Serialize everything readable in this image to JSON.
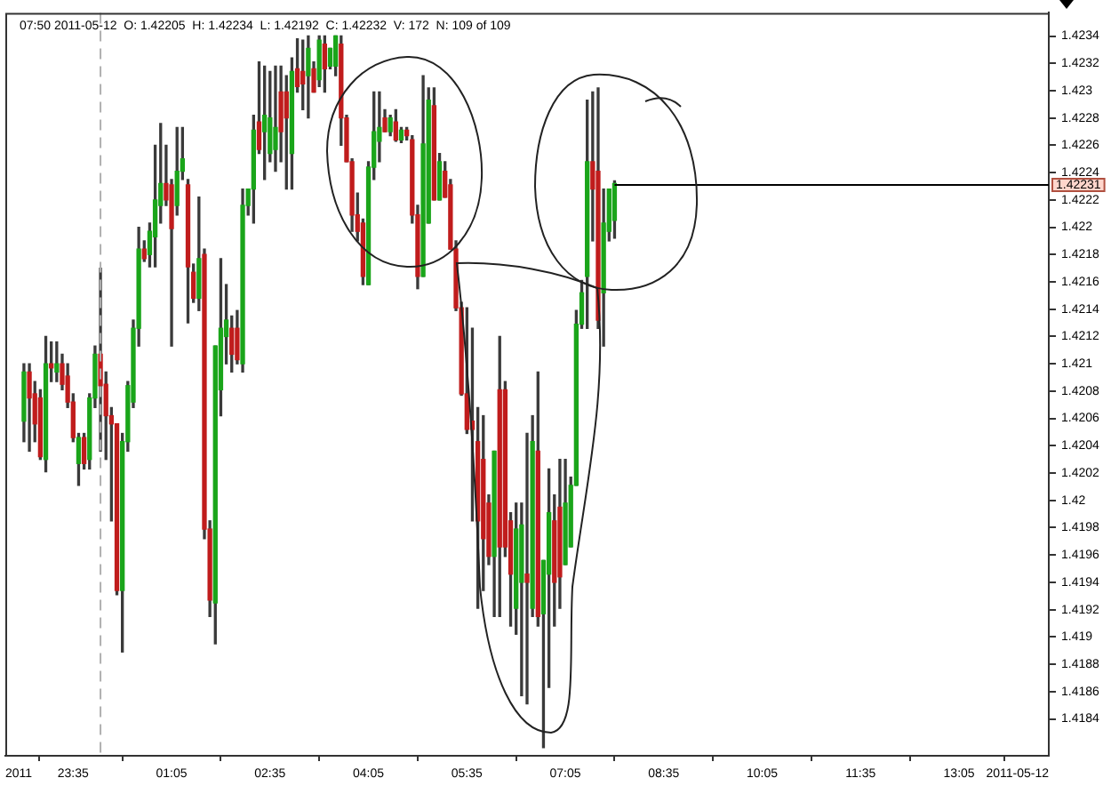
{
  "chart_data": {
    "type": "candlestick",
    "annotations": [
      "07:50 2011-05-12  O: 1.42205  H: 1.42234  L: 1.42192  C: 1.42232  V: 172  N: 109 of 109"
    ],
    "x": [
      "2011-05-11T22:50",
      "2011-05-11T22:55",
      "2011-05-11T23:00",
      "2011-05-11T23:05",
      "2011-05-11T23:10",
      "2011-05-11T23:15",
      "2011-05-11T23:20",
      "2011-05-11T23:25",
      "2011-05-11T23:30",
      "2011-05-11T23:35",
      "2011-05-11T23:40",
      "2011-05-11T23:45",
      "2011-05-11T23:50",
      "2011-05-11T23:55",
      "2011-05-12T00:00",
      "2011-05-12T00:05",
      "2011-05-12T00:10",
      "2011-05-12T00:15",
      "2011-05-12T00:20",
      "2011-05-12T00:25",
      "2011-05-12T00:30",
      "2011-05-12T00:35",
      "2011-05-12T00:40",
      "2011-05-12T00:45",
      "2011-05-12T00:50",
      "2011-05-12T00:55",
      "2011-05-12T01:00",
      "2011-05-12T01:05",
      "2011-05-12T01:10",
      "2011-05-12T01:15",
      "2011-05-12T01:20",
      "2011-05-12T01:25",
      "2011-05-12T01:30",
      "2011-05-12T01:35",
      "2011-05-12T01:40",
      "2011-05-12T01:45",
      "2011-05-12T01:50",
      "2011-05-12T01:55",
      "2011-05-12T02:00",
      "2011-05-12T02:05",
      "2011-05-12T02:10",
      "2011-05-12T02:15",
      "2011-05-12T02:20",
      "2011-05-12T02:25",
      "2011-05-12T02:30",
      "2011-05-12T02:35",
      "2011-05-12T02:40",
      "2011-05-12T02:45",
      "2011-05-12T02:50",
      "2011-05-12T02:55",
      "2011-05-12T03:00",
      "2011-05-12T03:05",
      "2011-05-12T03:10",
      "2011-05-12T03:15",
      "2011-05-12T03:20",
      "2011-05-12T03:25",
      "2011-05-12T03:30",
      "2011-05-12T03:35",
      "2011-05-12T03:40",
      "2011-05-12T03:45",
      "2011-05-12T03:50",
      "2011-05-12T03:55",
      "2011-05-12T04:00",
      "2011-05-12T04:05",
      "2011-05-12T04:10",
      "2011-05-12T04:15",
      "2011-05-12T04:20",
      "2011-05-12T04:25",
      "2011-05-12T04:30",
      "2011-05-12T04:35",
      "2011-05-12T04:40",
      "2011-05-12T04:45",
      "2011-05-12T04:50",
      "2011-05-12T04:55",
      "2011-05-12T05:00",
      "2011-05-12T05:05",
      "2011-05-12T05:10",
      "2011-05-12T05:15",
      "2011-05-12T05:20",
      "2011-05-12T05:25",
      "2011-05-12T05:30",
      "2011-05-12T05:35",
      "2011-05-12T05:40",
      "2011-05-12T05:45",
      "2011-05-12T05:50",
      "2011-05-12T05:55",
      "2011-05-12T06:00",
      "2011-05-12T06:05",
      "2011-05-12T06:10",
      "2011-05-12T06:15",
      "2011-05-12T06:20",
      "2011-05-12T06:25",
      "2011-05-12T06:30",
      "2011-05-12T06:35",
      "2011-05-12T06:40",
      "2011-05-12T06:45",
      "2011-05-12T06:50",
      "2011-05-12T06:55",
      "2011-05-12T07:00",
      "2011-05-12T07:05",
      "2011-05-12T07:10",
      "2011-05-12T07:15",
      "2011-05-12T07:20",
      "2011-05-12T07:25",
      "2011-05-12T07:30",
      "2011-05-12T07:35",
      "2011-05-12T07:40",
      "2011-05-12T07:45",
      "2011-05-12T07:50"
    ],
    "ohlc": [
      [
        1.42058,
        1.421,
        1.42043,
        1.42094
      ],
      [
        1.42094,
        1.421,
        1.42036,
        1.42075
      ],
      [
        1.42078,
        1.42087,
        1.42043,
        1.42056
      ],
      [
        1.42075,
        1.42081,
        1.4203,
        1.42032
      ],
      [
        1.4203,
        1.4212,
        1.42021,
        1.421
      ],
      [
        1.421,
        1.42116,
        1.42087,
        1.42097
      ],
      [
        1.42094,
        1.42116,
        1.42087,
        1.421
      ],
      [
        1.421,
        1.42107,
        1.42081,
        1.42085
      ],
      [
        1.42091,
        1.421,
        1.42068,
        1.42072
      ],
      [
        1.42072,
        1.42078,
        1.42043,
        1.42046
      ],
      [
        1.42027,
        1.42049,
        1.42011,
        1.42046
      ],
      [
        1.42046,
        1.42049,
        1.42023,
        1.42027
      ],
      [
        1.4203,
        1.42078,
        1.42023,
        1.42075
      ],
      [
        1.42075,
        1.42113,
        1.42068,
        1.42107
      ],
      [
        1.42107,
        1.4217,
        1.42036,
        1.42084
      ],
      [
        1.42085,
        1.42094,
        1.4203,
        1.42062
      ],
      [
        1.42062,
        1.42068,
        1.41985,
        1.42056
      ],
      [
        1.42056,
        1.42056,
        1.41931,
        1.41934
      ],
      [
        1.41934,
        1.42049,
        1.41889,
        1.42043
      ],
      [
        1.42043,
        1.42087,
        1.42036,
        1.42084
      ],
      [
        1.42072,
        1.42132,
        1.42068,
        1.42126
      ],
      [
        1.42126,
        1.422,
        1.42113,
        1.42184
      ],
      [
        1.42184,
        1.4219,
        1.42175,
        1.42177
      ],
      [
        1.4218,
        1.42203,
        1.42171,
        1.42197
      ],
      [
        1.42193,
        1.4226,
        1.42171,
        1.4222
      ],
      [
        1.42216,
        1.42276,
        1.42203,
        1.42232
      ],
      [
        1.42232,
        1.4226,
        1.42216,
        1.4222
      ],
      [
        1.42231,
        1.42235,
        1.42113,
        1.42199
      ],
      [
        1.42216,
        1.42273,
        1.42209,
        1.42241
      ],
      [
        1.42241,
        1.42273,
        1.42235,
        1.4225
      ],
      [
        1.42231,
        1.42235,
        1.4213,
        1.42171
      ],
      [
        1.42167,
        1.42173,
        1.42145,
        1.42148
      ],
      [
        1.42148,
        1.42222,
        1.42139,
        1.42177
      ],
      [
        1.4218,
        1.42184,
        1.41972,
        1.41979
      ],
      [
        1.41979,
        1.41985,
        1.41915,
        1.41927
      ],
      [
        1.41925,
        1.42113,
        1.41895,
        1.42113
      ],
      [
        1.42081,
        1.42177,
        1.42062,
        1.42126
      ],
      [
        1.4212,
        1.42158,
        1.421,
        1.42132
      ],
      [
        1.42126,
        1.42135,
        1.42094,
        1.42107
      ],
      [
        1.42126,
        1.42139,
        1.421,
        1.42103
      ],
      [
        1.421,
        1.42228,
        1.42094,
        1.42216
      ],
      [
        1.42216,
        1.42228,
        1.42209,
        1.42228
      ],
      [
        1.42228,
        1.42282,
        1.42203,
        1.42271
      ],
      [
        1.42277,
        1.42321,
        1.42254,
        1.42257
      ],
      [
        1.4227,
        1.42318,
        1.42235,
        1.42282
      ],
      [
        1.42254,
        1.42314,
        1.42248,
        1.4228
      ],
      [
        1.42257,
        1.42318,
        1.42241,
        1.42273
      ],
      [
        1.42299,
        1.42318,
        1.42248,
        1.4227
      ],
      [
        1.42299,
        1.42311,
        1.42228,
        1.4228
      ],
      [
        1.42254,
        1.42324,
        1.42228,
        1.42314
      ],
      [
        1.42316,
        1.42338,
        1.42299,
        1.42303
      ],
      [
        1.42314,
        1.42337,
        1.42286,
        1.42305
      ],
      [
        1.42311,
        1.4234,
        1.4228,
        1.42331
      ],
      [
        1.42316,
        1.42321,
        1.42299,
        1.42299
      ],
      [
        1.42308,
        1.4234,
        1.42303,
        1.42337
      ],
      [
        1.42334,
        1.4234,
        1.42299,
        1.42316
      ],
      [
        1.42318,
        1.42331,
        1.42316,
        1.42331
      ],
      [
        1.42318,
        1.4234,
        1.42311,
        1.4234
      ],
      [
        1.42334,
        1.4234,
        1.4226,
        1.4228
      ],
      [
        1.4228,
        1.42282,
        1.42248,
        1.42248
      ],
      [
        1.42248,
        1.4225,
        1.42197,
        1.42209
      ],
      [
        1.42209,
        1.42225,
        1.4219,
        1.42197
      ],
      [
        1.42203,
        1.42206,
        1.42158,
        1.42164
      ],
      [
        1.42158,
        1.42248,
        1.42158,
        1.42244
      ],
      [
        1.42244,
        1.42299,
        1.42235,
        1.4227
      ],
      [
        1.42263,
        1.42299,
        1.42248,
        1.42273
      ],
      [
        1.4228,
        1.42286,
        1.4227,
        1.4227
      ],
      [
        1.4227,
        1.42282,
        1.42267,
        1.4228
      ],
      [
        1.42277,
        1.42286,
        1.42263,
        1.42264
      ],
      [
        1.42264,
        1.42273,
        1.42262,
        1.42271
      ],
      [
        1.42271,
        1.42273,
        1.42264,
        1.42267
      ],
      [
        1.42264,
        1.42267,
        1.42203,
        1.42209
      ],
      [
        1.42209,
        1.42216,
        1.42155,
        1.42164
      ],
      [
        1.42164,
        1.42311,
        1.42164,
        1.42261
      ],
      [
        1.42203,
        1.42302,
        1.42203,
        1.42293
      ],
      [
        1.42289,
        1.42302,
        1.4222,
        1.4222
      ],
      [
        1.4222,
        1.42254,
        1.4222,
        1.42248
      ],
      [
        1.42241,
        1.42248,
        1.42222,
        1.42222
      ],
      [
        1.42231,
        1.42235,
        1.42184,
        1.42184
      ],
      [
        1.42184,
        1.4219,
        1.42139,
        1.42141
      ],
      [
        1.42141,
        1.42145,
        1.42077,
        1.42078
      ],
      [
        1.42078,
        1.42141,
        1.42049,
        1.42052
      ],
      [
        1.42058,
        1.42126,
        1.41985,
        1.42052
      ],
      [
        1.42043,
        1.42068,
        1.41921,
        1.41985
      ],
      [
        1.4203,
        1.42062,
        1.41934,
        1.41972
      ],
      [
        1.41998,
        1.42004,
        1.41953,
        1.41959
      ],
      [
        1.41959,
        1.42036,
        1.41915,
        1.42036
      ],
      [
        1.42081,
        1.4212,
        1.41915,
        1.41966
      ],
      [
        1.42081,
        1.42087,
        1.41959,
        1.41966
      ],
      [
        1.41985,
        1.41991,
        1.41908,
        1.41946
      ],
      [
        1.41921,
        1.41998,
        1.41902,
        1.41979
      ],
      [
        1.4194,
        1.41998,
        1.41857,
        1.41982
      ],
      [
        1.41946,
        1.42049,
        1.41851,
        1.4194
      ],
      [
        1.41921,
        1.42062,
        1.41915,
        1.42043
      ],
      [
        1.42036,
        1.42094,
        1.41908,
        1.41915
      ],
      [
        1.41917,
        1.41956,
        1.41819,
        1.41956
      ],
      [
        1.41946,
        1.42023,
        1.41863,
        1.41991
      ],
      [
        1.41985,
        1.42004,
        1.41908,
        1.4194
      ],
      [
        1.41995,
        1.4203,
        1.41921,
        1.41944
      ],
      [
        1.41953,
        1.4203,
        1.41953,
        1.41998
      ],
      [
        1.41966,
        1.42017,
        1.41966,
        1.42011
      ],
      [
        1.42011,
        1.42139,
        1.42011,
        1.42129
      ],
      [
        1.42129,
        1.42161,
        1.42126,
        1.42152
      ],
      [
        1.42164,
        1.42293,
        1.42126,
        1.42248
      ],
      [
        1.42248,
        1.42299,
        1.4219,
        1.42228
      ],
      [
        1.42241,
        1.42302,
        1.42126,
        1.42132
      ],
      [
        1.42152,
        1.42228,
        1.42113,
        1.42203
      ],
      [
        1.42197,
        1.42228,
        1.4219,
        1.42228
      ],
      [
        1.42205,
        1.42234,
        1.42192,
        1.42232
      ]
    ],
    "colors": [
      "#1aa51a",
      "#c01c1c",
      "#c01c1c",
      "#c01c1c",
      "#1aa51a",
      "#c01c1c",
      "#1aa51a",
      "#c01c1c",
      "#c01c1c",
      "#c01c1c",
      "#1aa51a",
      "#c01c1c",
      "#1aa51a",
      "#1aa51a",
      "#c01c1c",
      "#c01c1c",
      "#c01c1c",
      "#c01c1c",
      "#1aa51a",
      "#1aa51a",
      "#1aa51a",
      "#1aa51a",
      "#c01c1c",
      "#1aa51a",
      "#1aa51a",
      "#1aa51a",
      "#c01c1c",
      "#c01c1c",
      "#1aa51a",
      "#1aa51a",
      "#c01c1c",
      "#c01c1c",
      "#1aa51a",
      "#c01c1c",
      "#c01c1c",
      "#1aa51a",
      "#1aa51a",
      "#1aa51a",
      "#c01c1c",
      "#c01c1c",
      "#1aa51a",
      "#1aa51a",
      "#1aa51a",
      "#c01c1c",
      "#1aa51a",
      "#1aa51a",
      "#1aa51a",
      "#c01c1c",
      "#c01c1c",
      "#1aa51a",
      "#c01c1c",
      "#c01c1c",
      "#1aa51a",
      "#c01c1c",
      "#1aa51a",
      "#c01c1c",
      "#1aa51a",
      "#1aa51a",
      "#c01c1c",
      "#c01c1c",
      "#c01c1c",
      "#c01c1c",
      "#c01c1c",
      "#1aa51a",
      "#1aa51a",
      "#1aa51a",
      "#c01c1c",
      "#1aa51a",
      "#c01c1c",
      "#1aa51a",
      "#c01c1c",
      "#c01c1c",
      "#c01c1c",
      "#1aa51a",
      "#1aa51a",
      "#c01c1c",
      "#1aa51a",
      "#c01c1c",
      "#c01c1c",
      "#c01c1c",
      "#c01c1c",
      "#c01c1c",
      "#c01c1c",
      "#c01c1c",
      "#c01c1c",
      "#c01c1c",
      "#1aa51a",
      "#c01c1c",
      "#c01c1c",
      "#c01c1c",
      "#1aa51a",
      "#1aa51a",
      "#c01c1c",
      "#1aa51a",
      "#c01c1c",
      "#1aa51a",
      "#1aa51a",
      "#c01c1c",
      "#c01c1c",
      "#1aa51a",
      "#1aa51a",
      "#1aa51a",
      "#1aa51a",
      "#1aa51a",
      "#c01c1c",
      "#c01c1c",
      "#1aa51a",
      "#1aa51a",
      "#1aa51a"
    ],
    "xlim": [
      "2011-05-11T22:33",
      "2011-05-12T14:27"
    ],
    "xticks": [
      {
        "value": "2011-05-11T22:33",
        "label": "2011"
      },
      {
        "value": "2011-05-11T23:35",
        "label": "23:35"
      },
      {
        "value": "2011-05-12T01:05",
        "label": "01:05"
      },
      {
        "value": "2011-05-12T02:35",
        "label": "02:35"
      },
      {
        "value": "2011-05-12T04:05",
        "label": "04:05"
      },
      {
        "value": "2011-05-12T05:35",
        "label": "05:35"
      },
      {
        "value": "2011-05-12T07:05",
        "label": "07:05"
      },
      {
        "value": "2011-05-12T08:35",
        "label": "08:35"
      },
      {
        "value": "2011-05-12T10:05",
        "label": "10:05"
      },
      {
        "value": "2011-05-12T11:35",
        "label": "11:35"
      },
      {
        "value": "2011-05-12T13:05",
        "label": "13:05"
      },
      {
        "value": "2011-05-12T14:27",
        "label": "2011-05-12"
      }
    ],
    "ylim": [
      1.41813,
      1.42357
    ],
    "yticks": [
      1.4184,
      1.4186,
      1.4188,
      1.419,
      1.4192,
      1.4194,
      1.4196,
      1.4198,
      1.42,
      1.4202,
      1.4204,
      1.4206,
      1.4208,
      1.421,
      1.4212,
      1.4214,
      1.4216,
      1.4218,
      1.422,
      1.4222,
      1.4224,
      1.4226,
      1.4228,
      1.423,
      1.4232,
      1.4234
    ],
    "ref_lines": [
      {
        "axis": "x",
        "value": "2011-05-12T00:00",
        "color": "#b0b0b0",
        "line_style": "dashed"
      },
      {
        "axis": "y",
        "value": 1.42231,
        "label": "1.42231",
        "color": "#000000"
      }
    ]
  }
}
